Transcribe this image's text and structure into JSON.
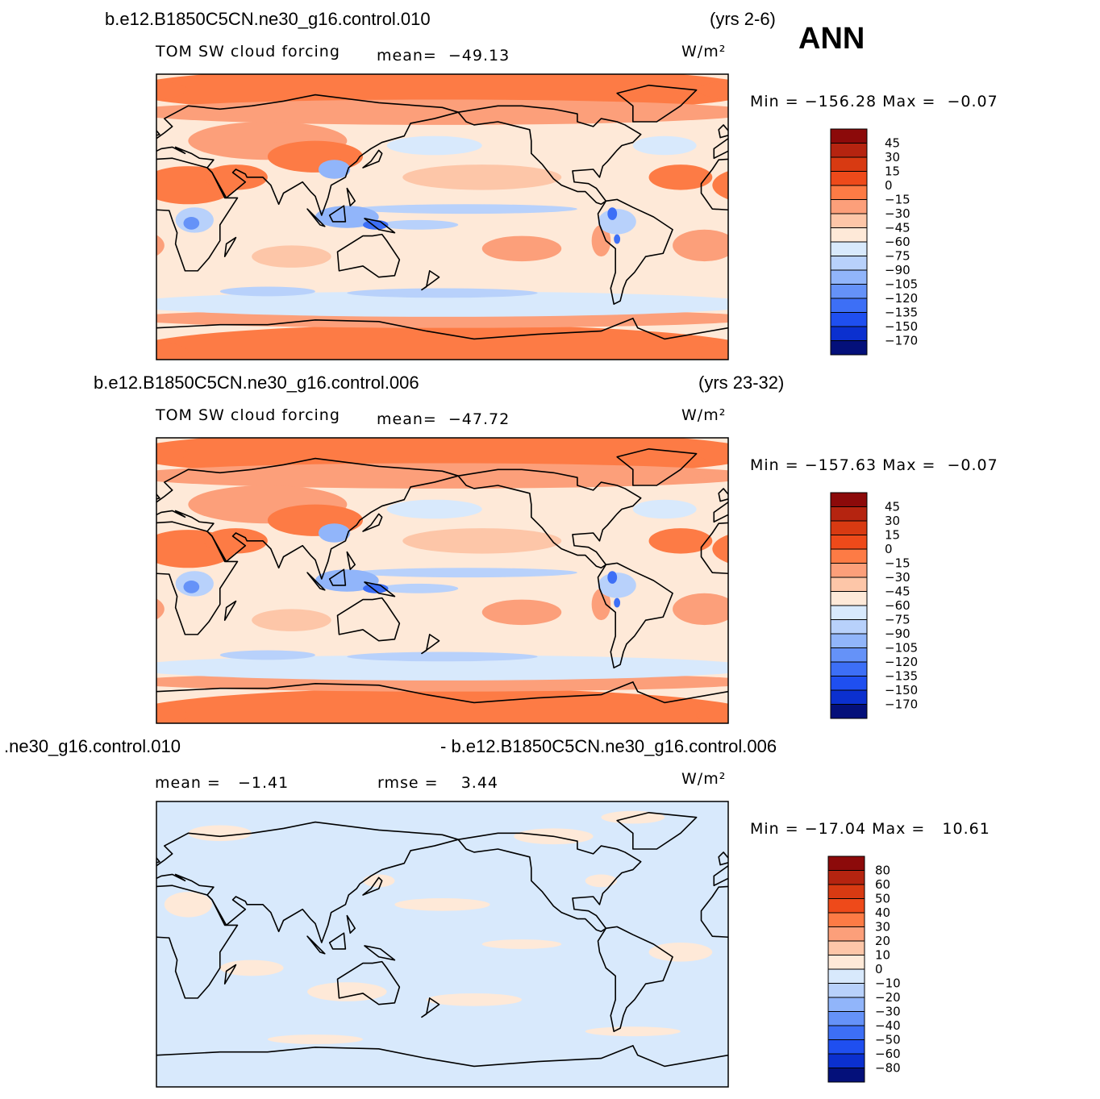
{
  "header": {
    "season": "ANN"
  },
  "panels": [
    {
      "case": [
        "b.e12.B1850C5CN.ne30_g16.control.010"
      ],
      "years": "(yrs 2-6)",
      "field": "TOM SW cloud forcing",
      "stats": [
        "mean=  −49.13"
      ],
      "units": "W/m²",
      "range": "Min = −156.28 Max =  −0.07",
      "colorbar": {
        "labels": [
          "45",
          "30",
          "15",
          "0",
          "−15",
          "−30",
          "−45",
          "−60",
          "−75",
          "−90",
          "−105",
          "−120",
          "−135",
          "−150",
          "−170"
        ],
        "colors": [
          "#8c0a0a",
          "#b52410",
          "#d83a12",
          "#ee4a1a",
          "#fd7b45",
          "#fc9f7a",
          "#fdc6a8",
          "#fee9d8",
          "#d8e9fc",
          "#b8d1fb",
          "#91b5fa",
          "#6592f8",
          "#3d6ff6",
          "#1f4ff0",
          "#0b30cf",
          "#04107a"
        ]
      }
    },
    {
      "case": [
        "b.e12.B1850C5CN.ne30_g16.control.006"
      ],
      "years": "(yrs 23-32)",
      "field": "TOM SW cloud forcing",
      "stats": [
        "mean=  −47.72"
      ],
      "units": "W/m²",
      "range": "Min = −157.63 Max =  −0.07",
      "colorbar": {
        "labels": [
          "45",
          "30",
          "15",
          "0",
          "−15",
          "−30",
          "−45",
          "−60",
          "−75",
          "−90",
          "−105",
          "−120",
          "−135",
          "−150",
          "−170"
        ],
        "colors": [
          "#8c0a0a",
          "#b52410",
          "#d83a12",
          "#ee4a1a",
          "#fd7b45",
          "#fc9f7a",
          "#fdc6a8",
          "#fee9d8",
          "#d8e9fc",
          "#b8d1fb",
          "#91b5fa",
          "#6592f8",
          "#3d6ff6",
          "#1f4ff0",
          "#0b30cf",
          "#04107a"
        ]
      }
    },
    {
      "case": [
        ".ne30_g16.control.010",
        "- b.e12.B1850C5CN.ne30_g16.control.006"
      ],
      "stats": [
        "mean =   −1.41",
        "rmse =    3.44"
      ],
      "units": "W/m²",
      "range": "Min = −17.04 Max =   10.61",
      "colorbar": {
        "labels": [
          "80",
          "60",
          "50",
          "40",
          "30",
          "20",
          "10",
          "0",
          "−10",
          "−20",
          "−30",
          "−40",
          "−50",
          "−60",
          "−80"
        ],
        "colors": [
          "#8c0a0a",
          "#b52410",
          "#d83a12",
          "#ee4a1a",
          "#fd7b45",
          "#fc9f7a",
          "#fdc6a8",
          "#fee9d8",
          "#d8e9fc",
          "#b8d1fb",
          "#91b5fa",
          "#6592f8",
          "#3d6ff6",
          "#1f4ff0",
          "#0b30cf",
          "#04107a"
        ]
      }
    }
  ]
}
